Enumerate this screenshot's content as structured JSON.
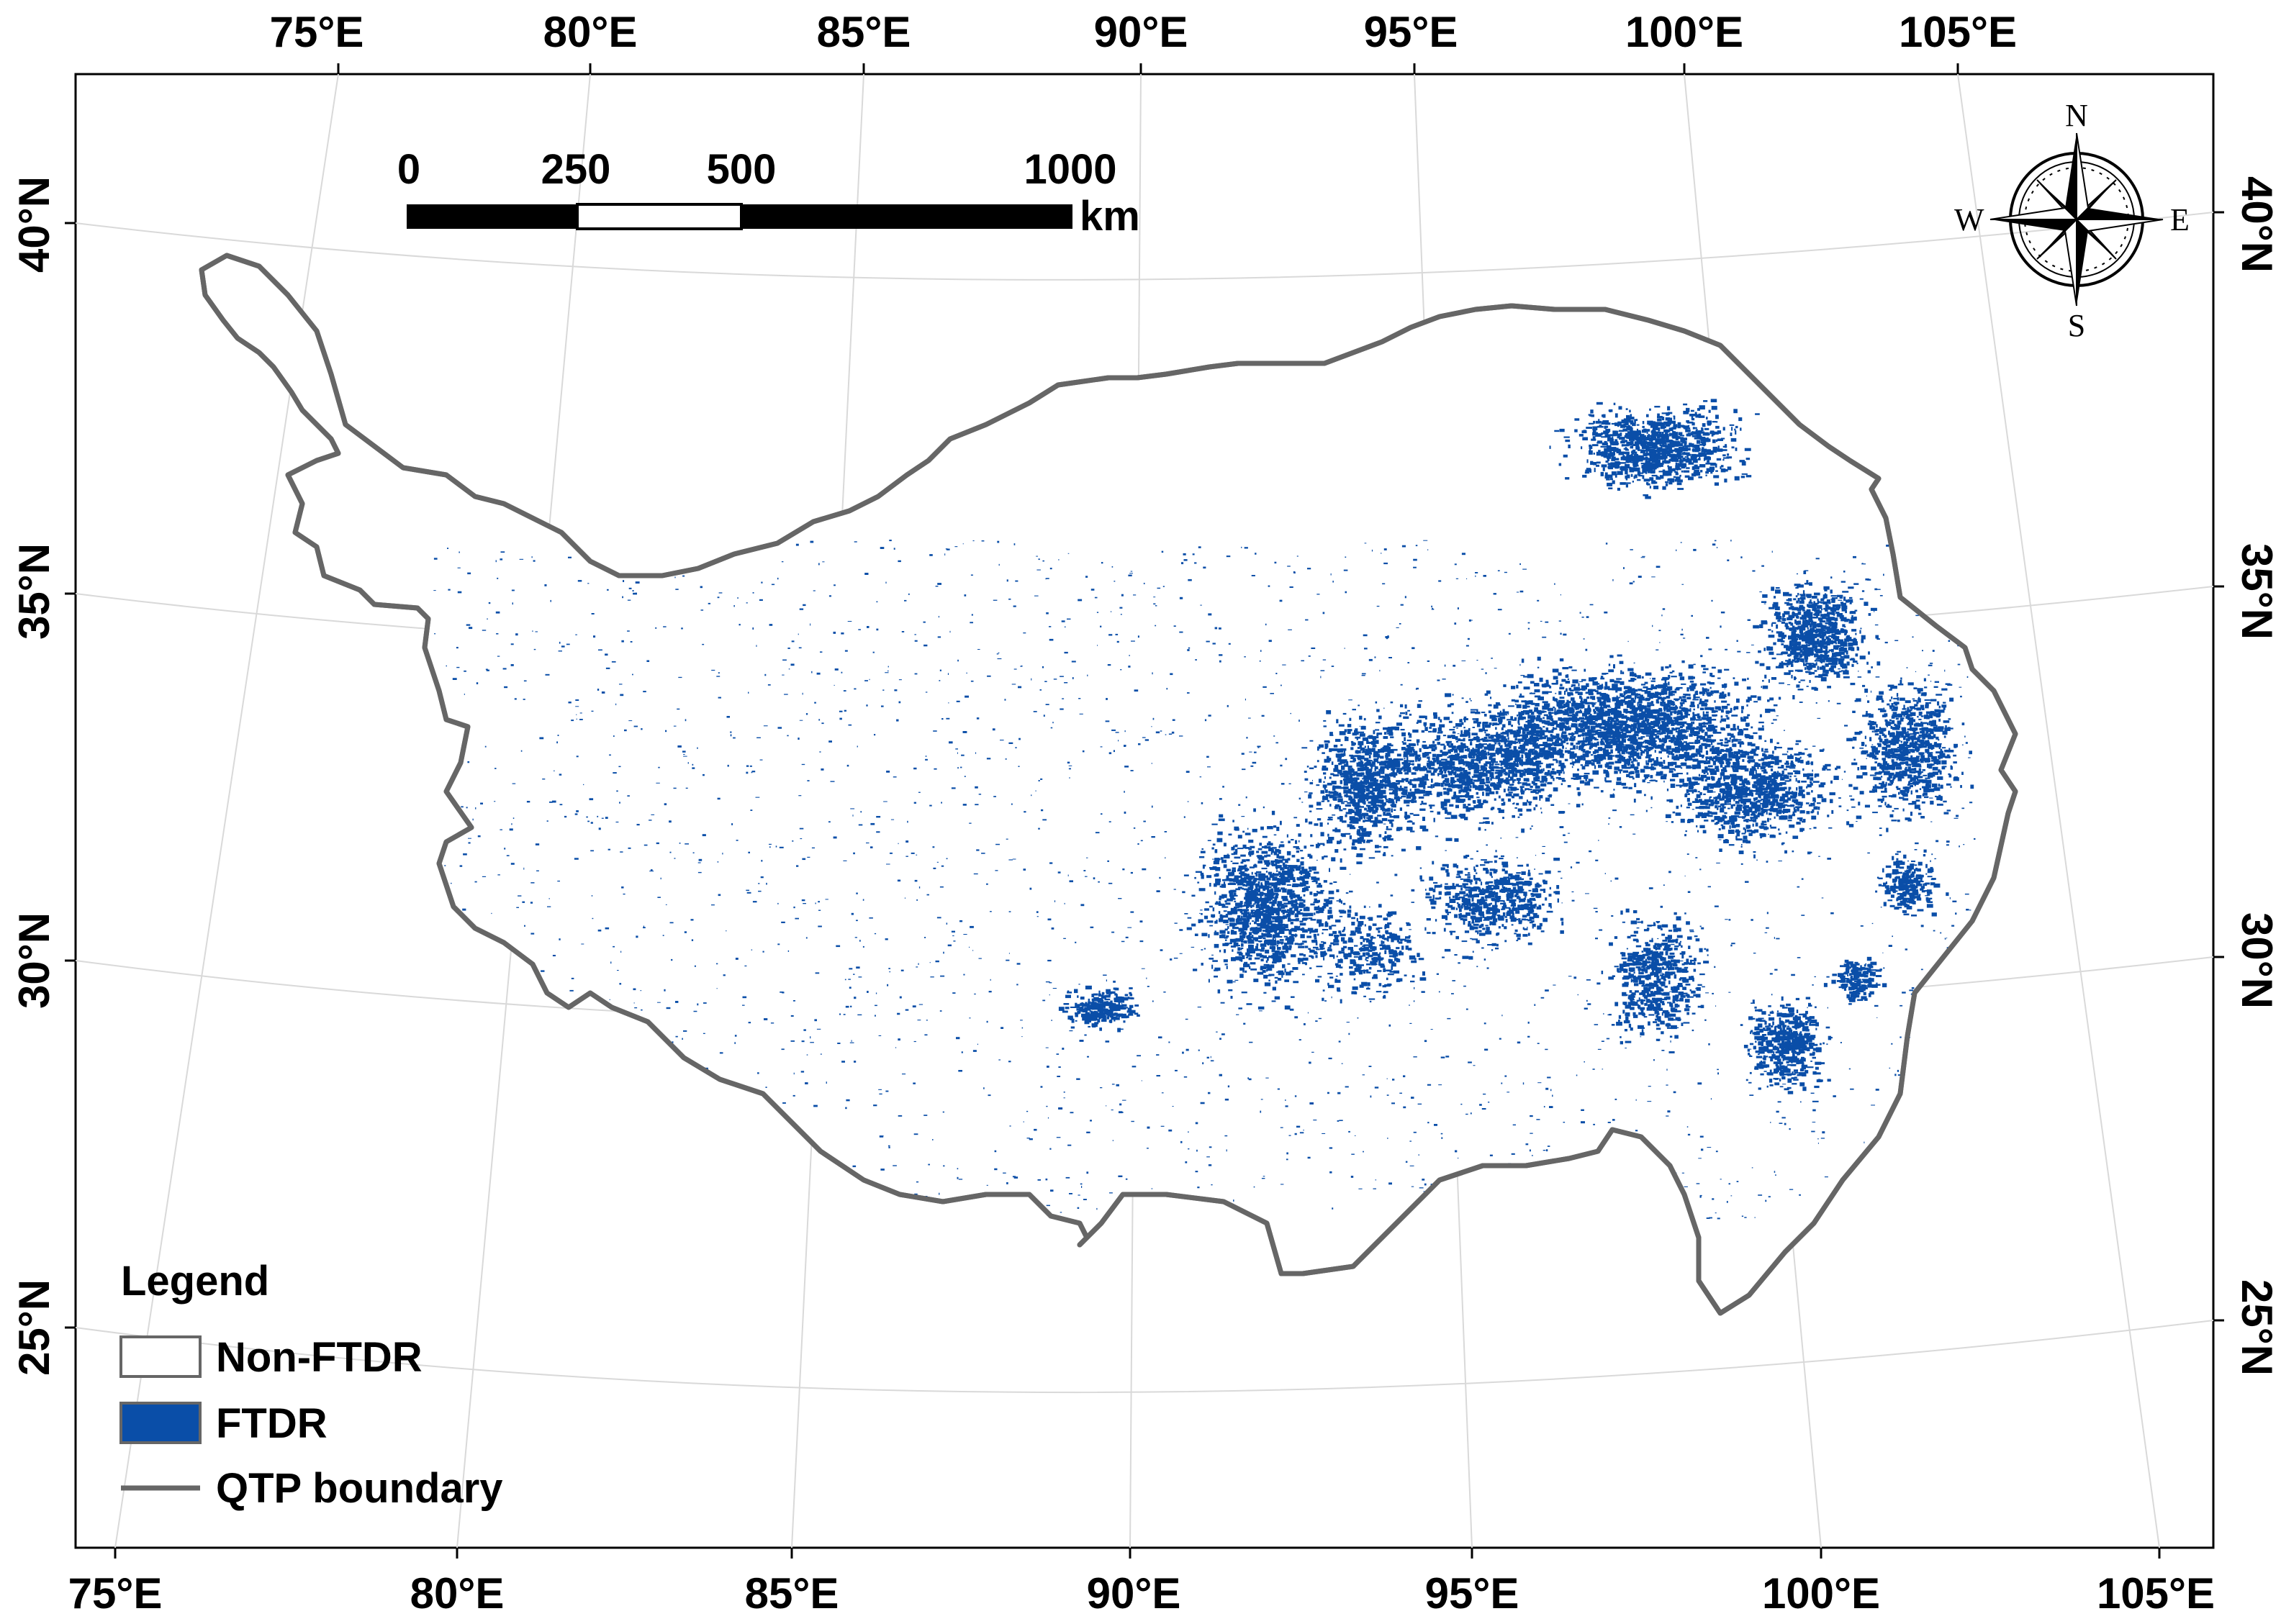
{
  "map": {
    "top_lon_labels": [
      "75°E",
      "80°E",
      "85°E",
      "90°E",
      "95°E",
      "100°E",
      "105°E"
    ],
    "bottom_lon_labels": [
      "75°E",
      "80°E",
      "85°E",
      "90°E",
      "95°E",
      "100°E",
      "105°E"
    ],
    "left_lat_labels": [
      "40°N",
      "35°N",
      "30°N",
      "25°N"
    ],
    "right_lat_labels": [
      "40°N",
      "35°N",
      "30°N",
      "25°N"
    ]
  },
  "scale_bar": {
    "labels": [
      "0",
      "250",
      "500",
      "1000"
    ],
    "unit": "km"
  },
  "compass": {
    "n": "N",
    "s": "S",
    "e": "E",
    "w": "W"
  },
  "legend": {
    "title": "Legend",
    "items": [
      {
        "label": "Non-FTDR",
        "fill": "#ffffff",
        "stroke": "#666666"
      },
      {
        "label": "FTDR",
        "fill": "#0a4ea8",
        "stroke": "#666666"
      },
      {
        "label": "QTP boundary",
        "type": "line",
        "stroke": "#666666"
      }
    ]
  },
  "colors": {
    "ftdr": "#0a4ea8",
    "boundary": "#666666",
    "graticule": "#d9d9d9",
    "frame": "#000000"
  }
}
